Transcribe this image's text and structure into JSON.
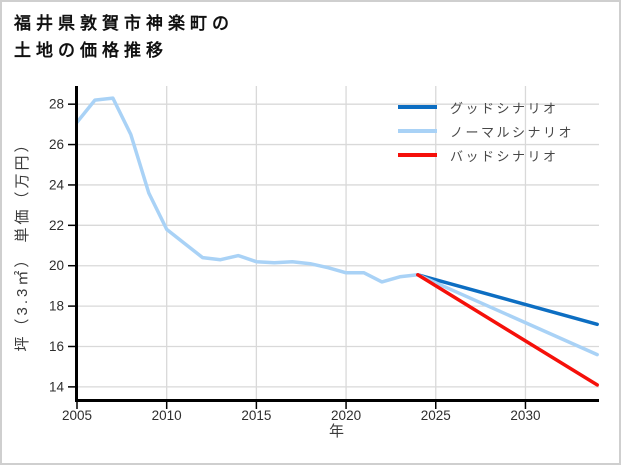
{
  "window": {
    "background": "#ffffff",
    "border_color": "#cfcfcf"
  },
  "chart_data": {
    "type": "line",
    "title_lines": [
      "福井県敦賀市神楽町の",
      "土地の価格推移"
    ],
    "xlabel": "年",
    "ylabel": "坪（3.3㎡） 単価（万円）",
    "xlim": [
      2005,
      2034.1
    ],
    "ylim": [
      13.35,
      28.9
    ],
    "xticks": [
      2005,
      2010,
      2015,
      2020,
      2025,
      2030
    ],
    "yticks": [
      14,
      16,
      18,
      20,
      22,
      24,
      26,
      28
    ],
    "grid": true,
    "grid_color": "#d9d9d9",
    "axis_color": "#000000",
    "legend_position": "top-right-inside",
    "series": [
      {
        "key": "history",
        "label": "",
        "show_in_legend": false,
        "color": "#a9d2f6",
        "x": [
          2005,
          2006,
          2007,
          2008,
          2009,
          2010,
          2011,
          2012,
          2013,
          2014,
          2015,
          2016,
          2017,
          2018,
          2019,
          2020,
          2021,
          2022,
          2023,
          2024
        ],
        "y": [
          27.1,
          28.2,
          28.3,
          26.5,
          23.6,
          21.8,
          21.1,
          20.4,
          20.3,
          20.5,
          20.2,
          20.15,
          20.2,
          20.1,
          19.9,
          19.65,
          19.65,
          19.2,
          19.45,
          19.55
        ]
      },
      {
        "key": "good-scenario",
        "label": "グッドシナリオ",
        "show_in_legend": true,
        "color": "#0d6ec2",
        "x": [
          2024,
          2034
        ],
        "y": [
          19.55,
          17.1
        ]
      },
      {
        "key": "normal-scenario",
        "label": "ノーマルシナリオ",
        "show_in_legend": true,
        "color": "#a9d2f6",
        "x": [
          2024,
          2034
        ],
        "y": [
          19.55,
          15.6
        ]
      },
      {
        "key": "bad-scenario",
        "label": "バッドシナリオ",
        "show_in_legend": true,
        "color": "#f5100a",
        "x": [
          2024,
          2034
        ],
        "y": [
          19.55,
          14.1
        ]
      }
    ]
  }
}
